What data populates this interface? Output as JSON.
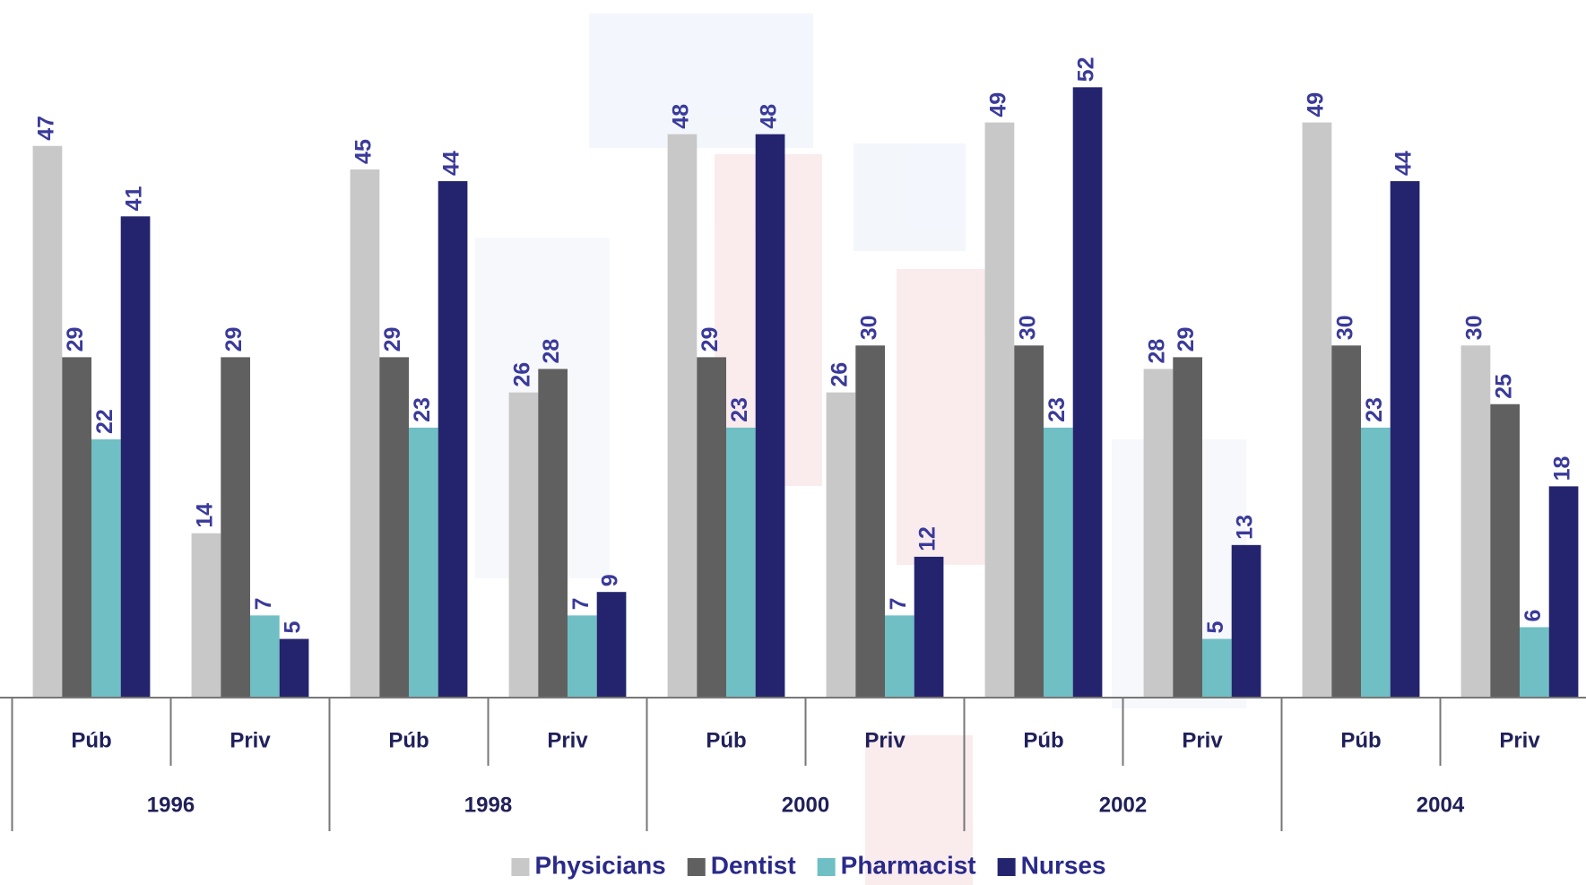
{
  "chart_data": {
    "type": "bar",
    "categories": [
      "Púb",
      "Priv",
      "Púb",
      "Priv",
      "Púb",
      "Priv",
      "Púb",
      "Priv",
      "Púb",
      "Priv"
    ],
    "category_groups": [
      "1996",
      "1998",
      "2000",
      "2002",
      "2004"
    ],
    "series": [
      {
        "name": "Physicians",
        "color": "#c8c8c8",
        "values": [
          47,
          14,
          45,
          26,
          48,
          26,
          49,
          28,
          49,
          30
        ]
      },
      {
        "name": "Dentist",
        "color": "#606060",
        "values": [
          29,
          29,
          29,
          28,
          29,
          30,
          30,
          29,
          30,
          25
        ]
      },
      {
        "name": "Pharmacist",
        "color": "#6fbfc4",
        "values": [
          22,
          7,
          23,
          7,
          23,
          7,
          23,
          5,
          23,
          6
        ]
      },
      {
        "name": "Nurses",
        "color": "#24246e",
        "values": [
          41,
          5,
          44,
          9,
          48,
          12,
          52,
          13,
          44,
          18
        ]
      }
    ],
    "legend": "bottom"
  }
}
